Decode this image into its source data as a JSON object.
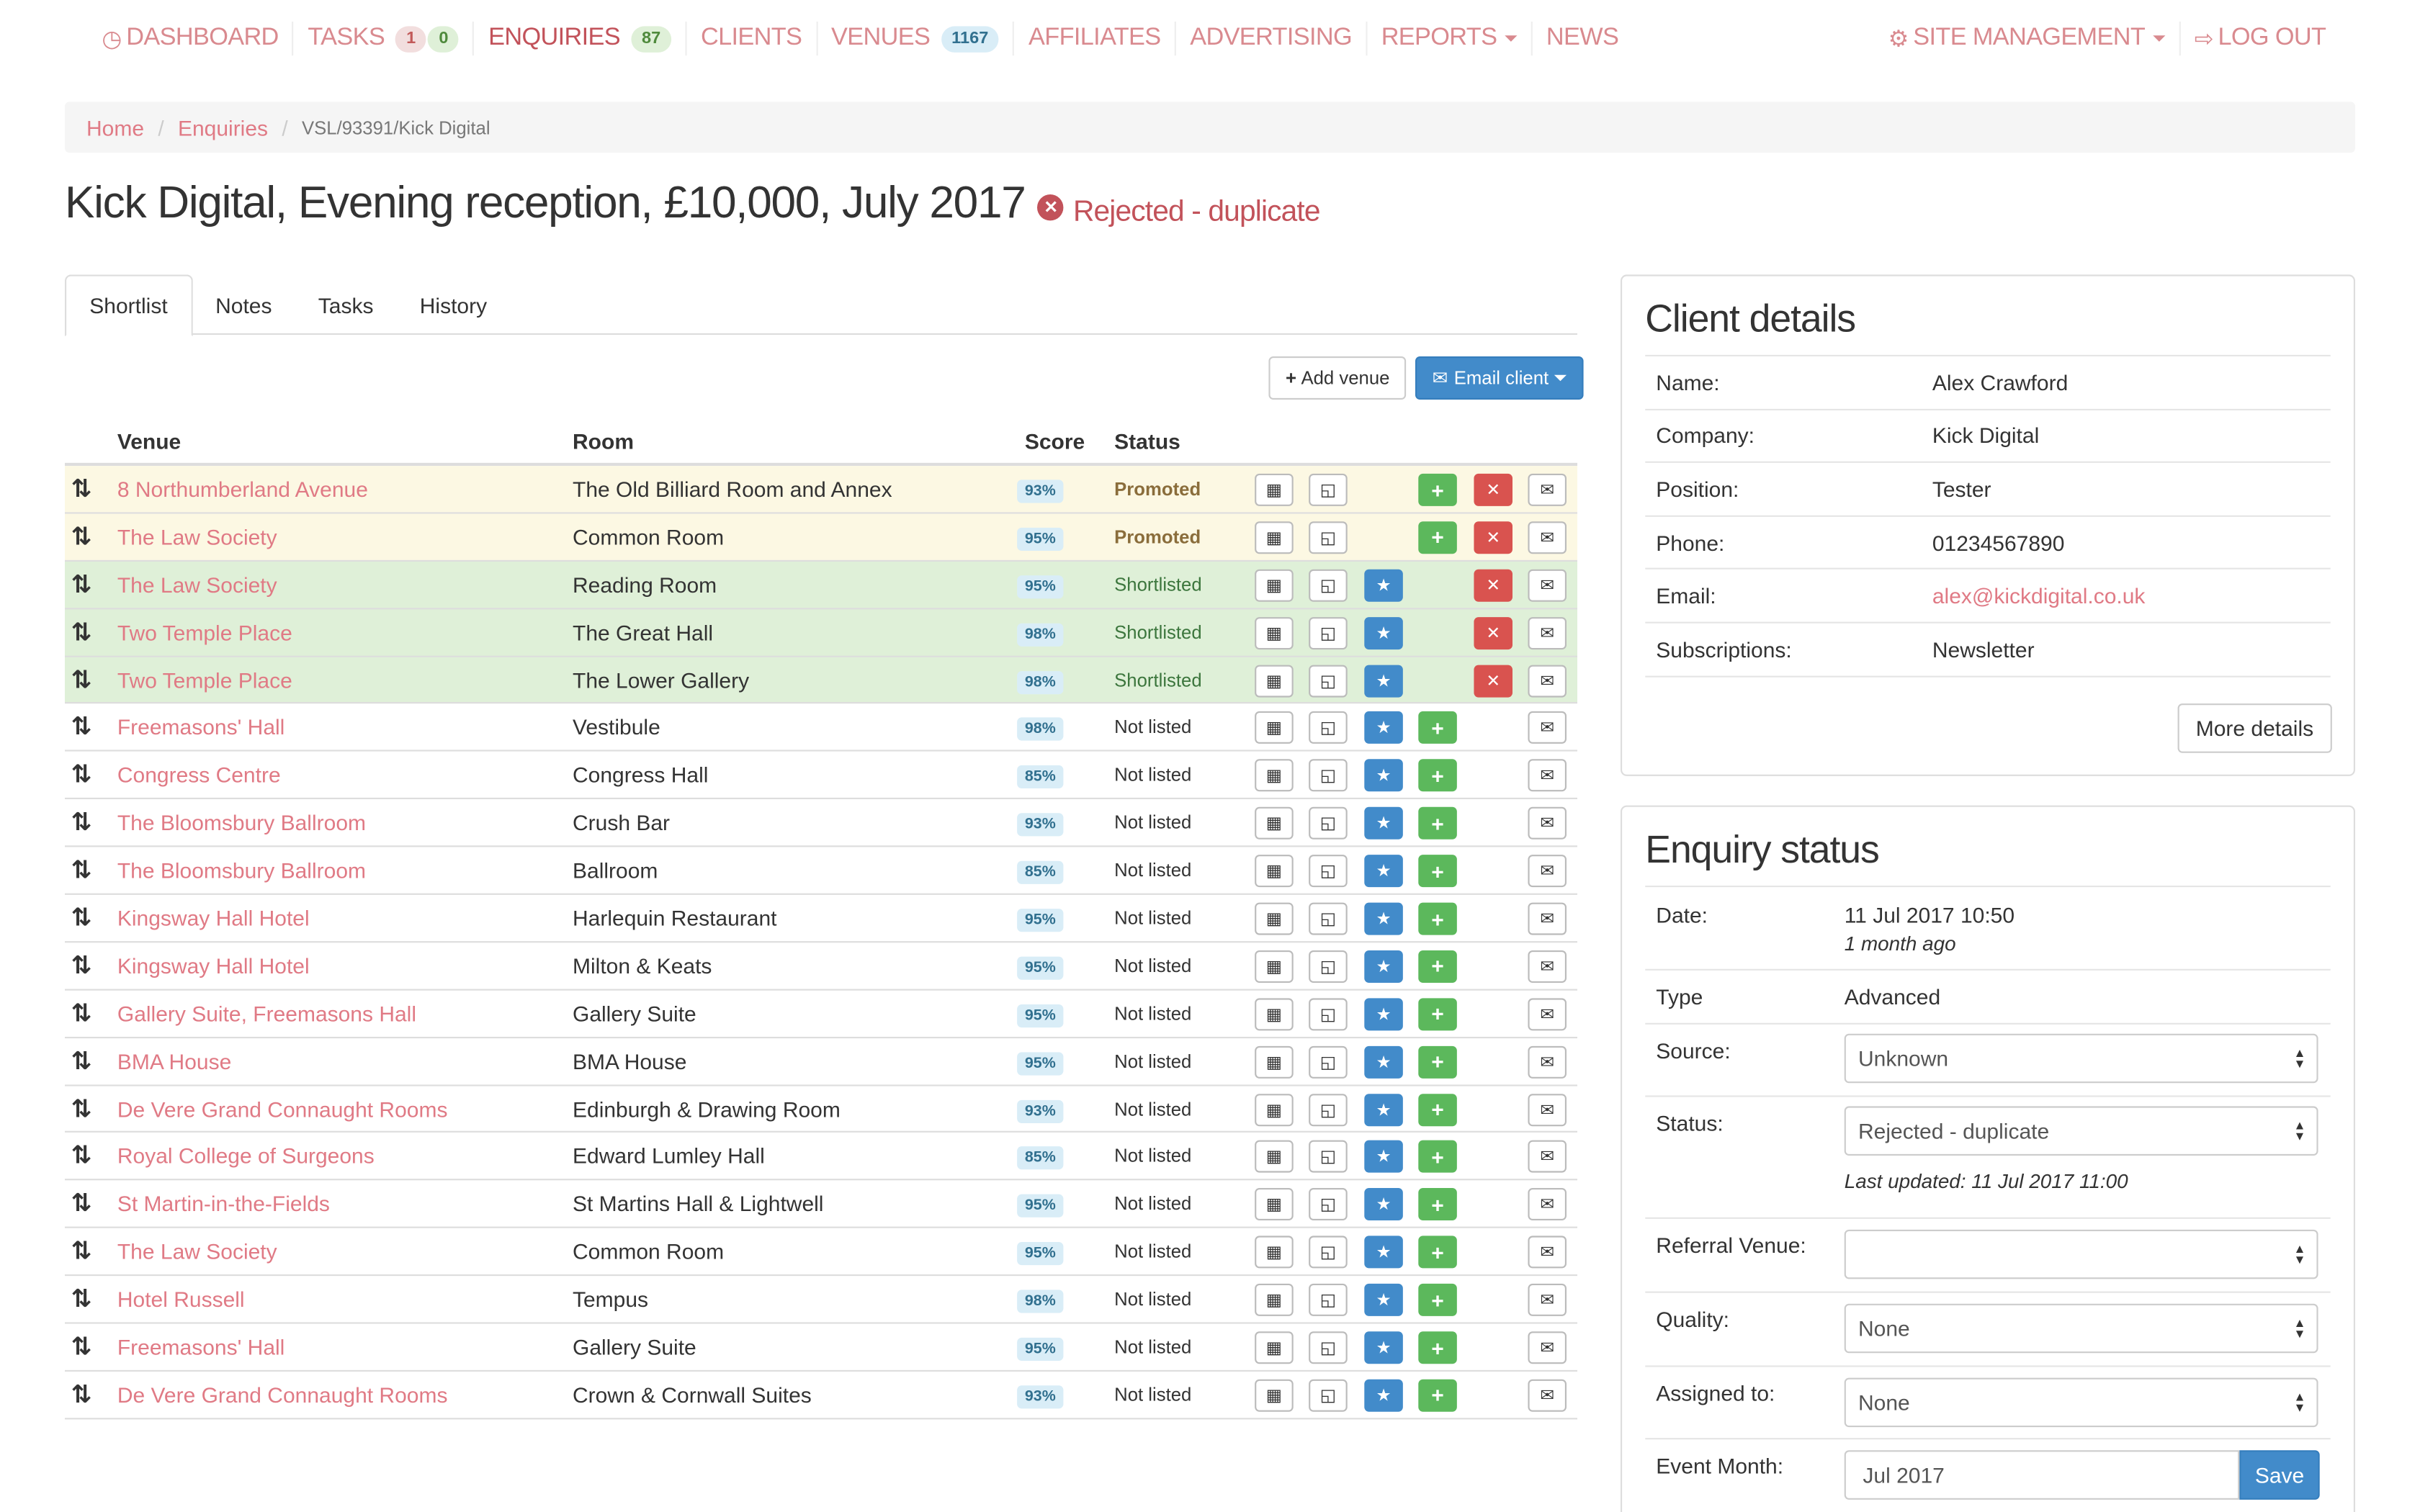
{
  "nav": {
    "dashboard": "Dashboard",
    "tasks": "Tasks",
    "tasks_badge_red": "1",
    "tasks_badge_green": "0",
    "enquiries": "Enquiries",
    "enquiries_badge": "87",
    "clients": "Clients",
    "venues": "Venues",
    "venues_badge": "1167",
    "affiliates": "Affiliates",
    "advertising": "Advertising",
    "reports": "Reports",
    "news": "News",
    "site_management": "Site Management",
    "log_out": "Log Out"
  },
  "breadcrumb": {
    "home": "Home",
    "enquiries": "Enquiries",
    "current": "VSL/93391/Kick Digital",
    "sep": "/"
  },
  "page": {
    "title": "Kick Digital, Evening reception, £10,000, July 2017",
    "status": "Rejected - duplicate"
  },
  "tabs": [
    "Shortlist",
    "Notes",
    "Tasks",
    "History"
  ],
  "toolbar": {
    "add_venue": "Add venue",
    "email_client": "Email client"
  },
  "table": {
    "headers": {
      "venue": "Venue",
      "room": "Room",
      "score": "Score",
      "status": "Status"
    },
    "rows": [
      {
        "venue": "8 Northumberland Avenue",
        "room": "The Old Billiard Room and Annex",
        "score": "93%",
        "status": "Promoted",
        "state": "promoted"
      },
      {
        "venue": "The Law Society",
        "room": "Common Room",
        "score": "95%",
        "status": "Promoted",
        "state": "promoted"
      },
      {
        "venue": "The Law Society",
        "room": "Reading Room",
        "score": "95%",
        "status": "Shortlisted",
        "state": "shortlisted"
      },
      {
        "venue": "Two Temple Place",
        "room": "The Great Hall",
        "score": "98%",
        "status": "Shortlisted",
        "state": "shortlisted"
      },
      {
        "venue": "Two Temple Place",
        "room": "The Lower Gallery",
        "score": "98%",
        "status": "Shortlisted",
        "state": "shortlisted"
      },
      {
        "venue": "Freemasons' Hall",
        "room": "Vestibule",
        "score": "98%",
        "status": "Not listed",
        "state": "none"
      },
      {
        "venue": "Congress Centre",
        "room": "Congress Hall",
        "score": "85%",
        "status": "Not listed",
        "state": "none"
      },
      {
        "venue": "The Bloomsbury Ballroom",
        "room": "Crush Bar",
        "score": "93%",
        "status": "Not listed",
        "state": "none"
      },
      {
        "venue": "The Bloomsbury Ballroom",
        "room": "Ballroom",
        "score": "85%",
        "status": "Not listed",
        "state": "none"
      },
      {
        "venue": "Kingsway Hall Hotel",
        "room": "Harlequin Restaurant",
        "score": "95%",
        "status": "Not listed",
        "state": "none"
      },
      {
        "venue": "Kingsway Hall Hotel",
        "room": "Milton & Keats",
        "score": "95%",
        "status": "Not listed",
        "state": "none"
      },
      {
        "venue": "Gallery Suite, Freemasons Hall",
        "room": "Gallery Suite",
        "score": "95%",
        "status": "Not listed",
        "state": "none"
      },
      {
        "venue": "BMA House",
        "room": "BMA House",
        "score": "95%",
        "status": "Not listed",
        "state": "none"
      },
      {
        "venue": "De Vere Grand Connaught Rooms",
        "room": "Edinburgh & Drawing Room",
        "score": "93%",
        "status": "Not listed",
        "state": "none"
      },
      {
        "venue": "Royal College of Surgeons",
        "room": "Edward Lumley Hall",
        "score": "85%",
        "status": "Not listed",
        "state": "none"
      },
      {
        "venue": "St Martin-in-the-Fields",
        "room": "St Martins Hall & Lightwell",
        "score": "95%",
        "status": "Not listed",
        "state": "none"
      },
      {
        "venue": "The Law Society",
        "room": "Common Room",
        "score": "95%",
        "status": "Not listed",
        "state": "none"
      },
      {
        "venue": "Hotel Russell",
        "room": "Tempus",
        "score": "98%",
        "status": "Not listed",
        "state": "none"
      },
      {
        "venue": "Freemasons' Hall",
        "room": "Gallery Suite",
        "score": "95%",
        "status": "Not listed",
        "state": "none"
      },
      {
        "venue": "De Vere Grand Connaught Rooms",
        "room": "Crown & Cornwall Suites",
        "score": "93%",
        "status": "Not listed",
        "state": "none"
      }
    ]
  },
  "client": {
    "title": "Client details",
    "fields": [
      {
        "label": "Name:",
        "value": "Alex Crawford"
      },
      {
        "label": "Company:",
        "value": "Kick Digital"
      },
      {
        "label": "Position:",
        "value": "Tester"
      },
      {
        "label": "Phone:",
        "value": "01234567890"
      },
      {
        "label": "Email:",
        "value": "alex@kickdigital.co.uk",
        "link": true
      },
      {
        "label": "Subscriptions:",
        "value": "Newsletter"
      }
    ],
    "more_details": "More details"
  },
  "enquiry": {
    "title": "Enquiry status",
    "date_label": "Date:",
    "date_value": "11 Jul 2017 10:50",
    "date_relative": "1 month ago",
    "type_label": "Type",
    "type_value": "Advanced",
    "source_label": "Source:",
    "source_value": "Unknown",
    "status_label": "Status:",
    "status_value": "Rejected - duplicate",
    "last_updated": "Last updated: 11 Jul 2017 11:00",
    "referral_label": "Referral Venue:",
    "referral_value": "",
    "quality_label": "Quality:",
    "quality_value": "None",
    "assigned_label": "Assigned to:",
    "assigned_value": "None",
    "event_month_label": "Event Month:",
    "event_month_value": "Jul 2017",
    "save": "Save"
  },
  "colors": {
    "link": "#e07a85",
    "active_nav": "#c2525a",
    "promoted_row": "#fcf8e3",
    "shortlisted_row": "#dff0d8",
    "primary": "#428bca",
    "success": "#5cb85c",
    "danger": "#d9534f"
  },
  "icons": {
    "dashboard": "dashboard-gauge-icon",
    "sort": "sort-arrows-icon",
    "calendar": "calendar-icon",
    "document": "document-icon",
    "star": "star-icon",
    "plus": "plus-icon",
    "remove": "remove-x-icon",
    "envelope": "envelope-icon",
    "gear": "gear-icon",
    "logout": "logout-icon",
    "reject": "reject-circle-icon"
  }
}
